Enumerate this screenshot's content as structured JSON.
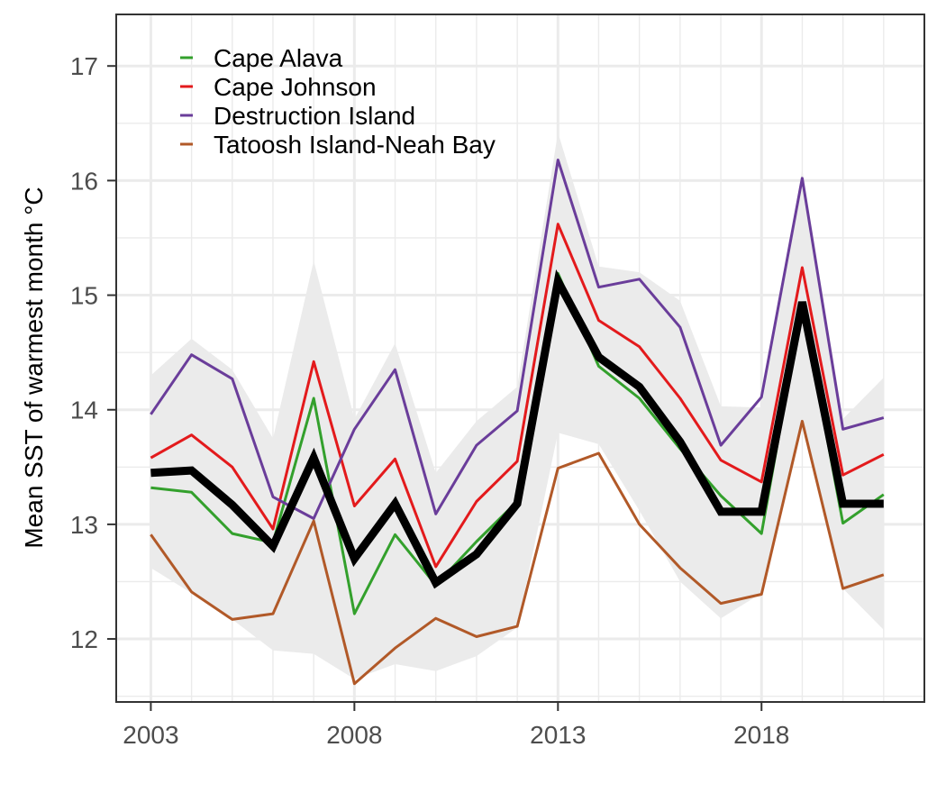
{
  "chart_data": {
    "type": "line",
    "title": "",
    "xlabel": "",
    "ylabel": "Mean SST of warmest month °C",
    "x": [
      2003,
      2004,
      2005,
      2006,
      2007,
      2008,
      2009,
      2010,
      2011,
      2012,
      2013,
      2014,
      2015,
      2016,
      2017,
      2018,
      2019,
      2020,
      2021
    ],
    "x_ticks": [
      2003,
      2008,
      2013,
      2018
    ],
    "y_ticks": [
      12,
      13,
      14,
      15,
      16,
      17
    ],
    "xlim": [
      2002.15,
      2022
    ],
    "ylim": [
      11.45,
      17.45
    ],
    "grid": true,
    "legend_position": "top-left",
    "series": [
      {
        "name": "Cape Alava",
        "color": "#33a02c",
        "values": [
          13.32,
          13.28,
          12.92,
          12.84,
          14.1,
          12.22,
          12.91,
          12.47,
          12.85,
          13.2,
          15.19,
          14.38,
          14.1,
          13.66,
          13.25,
          12.92,
          14.92,
          13.01,
          13.26
        ]
      },
      {
        "name": "Cape Johnson",
        "color": "#e31a1c",
        "values": [
          13.58,
          13.78,
          13.5,
          12.96,
          14.42,
          13.16,
          13.57,
          12.63,
          13.2,
          13.55,
          15.62,
          14.78,
          14.55,
          14.1,
          13.56,
          13.37,
          15.24,
          13.43,
          13.61
        ]
      },
      {
        "name": "Destruction Island",
        "color": "#6a3d9a",
        "values": [
          13.96,
          14.48,
          14.27,
          13.24,
          13.05,
          13.83,
          14.35,
          13.09,
          13.69,
          13.99,
          16.18,
          15.07,
          15.14,
          14.72,
          13.69,
          14.11,
          16.02,
          13.83,
          13.93
        ]
      },
      {
        "name": "Tatoosh Island-Neah Bay",
        "color": "#b15928",
        "values": [
          12.91,
          12.41,
          12.17,
          12.22,
          13.03,
          11.61,
          11.92,
          12.18,
          12.02,
          12.11,
          13.49,
          13.62,
          13.0,
          12.62,
          12.31,
          12.39,
          13.9,
          12.44,
          12.56
        ]
      }
    ],
    "mean_line": {
      "color": "#000000",
      "values": [
        13.45,
        13.47,
        13.17,
        12.81,
        13.58,
        12.7,
        13.18,
        12.49,
        12.74,
        13.18,
        15.12,
        14.46,
        14.2,
        13.72,
        13.11,
        13.11,
        14.94,
        13.18,
        13.18
      ]
    },
    "ribbon": {
      "color": "#ebebeb",
      "upper": [
        14.3,
        14.62,
        14.35,
        13.75,
        15.3,
        13.92,
        14.58,
        13.45,
        13.9,
        14.2,
        16.42,
        15.25,
        15.2,
        14.95,
        14.03,
        14.02,
        16.1,
        13.92,
        14.28
      ],
      "lower": [
        12.62,
        12.4,
        12.17,
        11.9,
        11.87,
        11.65,
        11.78,
        11.72,
        11.85,
        12.1,
        13.8,
        13.7,
        13.12,
        12.5,
        12.18,
        12.4,
        13.85,
        12.44,
        12.08
      ]
    }
  }
}
